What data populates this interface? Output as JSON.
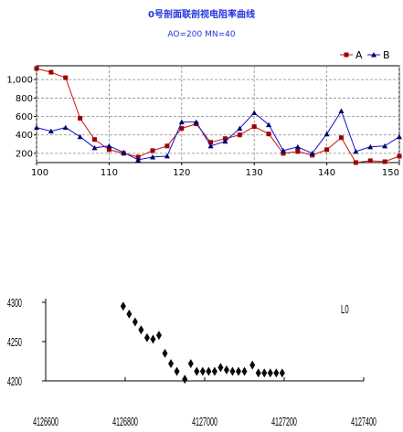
{
  "title": "0号剖面联剖视电阻率曲线",
  "subtitle": "AO=200   MN=40",
  "chart_data": [
    {
      "type": "line",
      "x": [
        100,
        102,
        104,
        106,
        108,
        110,
        112,
        114,
        116,
        118,
        120,
        122,
        124,
        126,
        128,
        130,
        132,
        134,
        136,
        138,
        140,
        142,
        144,
        146,
        148,
        150
      ],
      "series": [
        {
          "name": "A",
          "color": "#cc1111",
          "marker": "square",
          "values": [
            1120,
            1080,
            1020,
            580,
            350,
            240,
            200,
            160,
            230,
            280,
            470,
            520,
            320,
            360,
            400,
            490,
            410,
            200,
            220,
            180,
            240,
            370,
            100,
            120,
            110,
            170
          ]
        },
        {
          "name": "B",
          "color": "#1111cc",
          "marker": "triangle",
          "values": [
            480,
            440,
            480,
            380,
            260,
            280,
            210,
            130,
            160,
            170,
            540,
            540,
            280,
            330,
            470,
            640,
            510,
            230,
            270,
            200,
            410,
            660,
            220,
            270,
            280,
            380
          ]
        }
      ],
      "xlim": [
        100,
        150
      ],
      "ylim": [
        100,
        1150
      ],
      "xticks": [
        100,
        110,
        120,
        130,
        140,
        150
      ],
      "yticks": [
        {
          "value": 200,
          "label": "200"
        },
        {
          "value": 400,
          "label": "400"
        },
        {
          "value": 600,
          "label": "600"
        },
        {
          "value": 800,
          "label": "800"
        },
        {
          "value": 1000,
          "label": "1,000"
        }
      ],
      "grid": true,
      "legend": "top-right"
    },
    {
      "type": "scatter",
      "label": "L0",
      "marker_color": "#0a0a0a",
      "points": [
        [
          4126795,
          4295
        ],
        [
          4126810,
          4285
        ],
        [
          4126825,
          4275
        ],
        [
          4126840,
          4265
        ],
        [
          4126855,
          4255
        ],
        [
          4126870,
          4253
        ],
        [
          4126885,
          4258
        ],
        [
          4126900,
          4235
        ],
        [
          4126915,
          4222
        ],
        [
          4126930,
          4212
        ],
        [
          4126950,
          4202
        ],
        [
          4126965,
          4222
        ],
        [
          4126980,
          4212
        ],
        [
          4126995,
          4212
        ],
        [
          4127010,
          4212
        ],
        [
          4127025,
          4212
        ],
        [
          4127040,
          4217
        ],
        [
          4127055,
          4214
        ],
        [
          4127070,
          4212
        ],
        [
          4127085,
          4212
        ],
        [
          4127100,
          4212
        ],
        [
          4127120,
          4220
        ],
        [
          4127135,
          4210
        ],
        [
          4127150,
          4210
        ],
        [
          4127165,
          4210
        ],
        [
          4127180,
          4210
        ],
        [
          4127195,
          4210
        ]
      ],
      "xticks": [
        {
          "value": 4126600,
          "label": "4126600"
        },
        {
          "value": 4126800,
          "label": "4126800"
        },
        {
          "value": 4127000,
          "label": "4127000"
        },
        {
          "value": 4127200,
          "label": "4127200"
        },
        {
          "value": 4127400,
          "label": "4127400"
        }
      ],
      "yticks": [
        {
          "value": 4200,
          "label": "4200"
        },
        {
          "value": 4250,
          "label": "4250"
        },
        {
          "value": 4300,
          "label": "4300"
        }
      ],
      "xlim": [
        4126600,
        4127400
      ],
      "ylim": [
        4200,
        4300
      ],
      "grid": false
    }
  ]
}
